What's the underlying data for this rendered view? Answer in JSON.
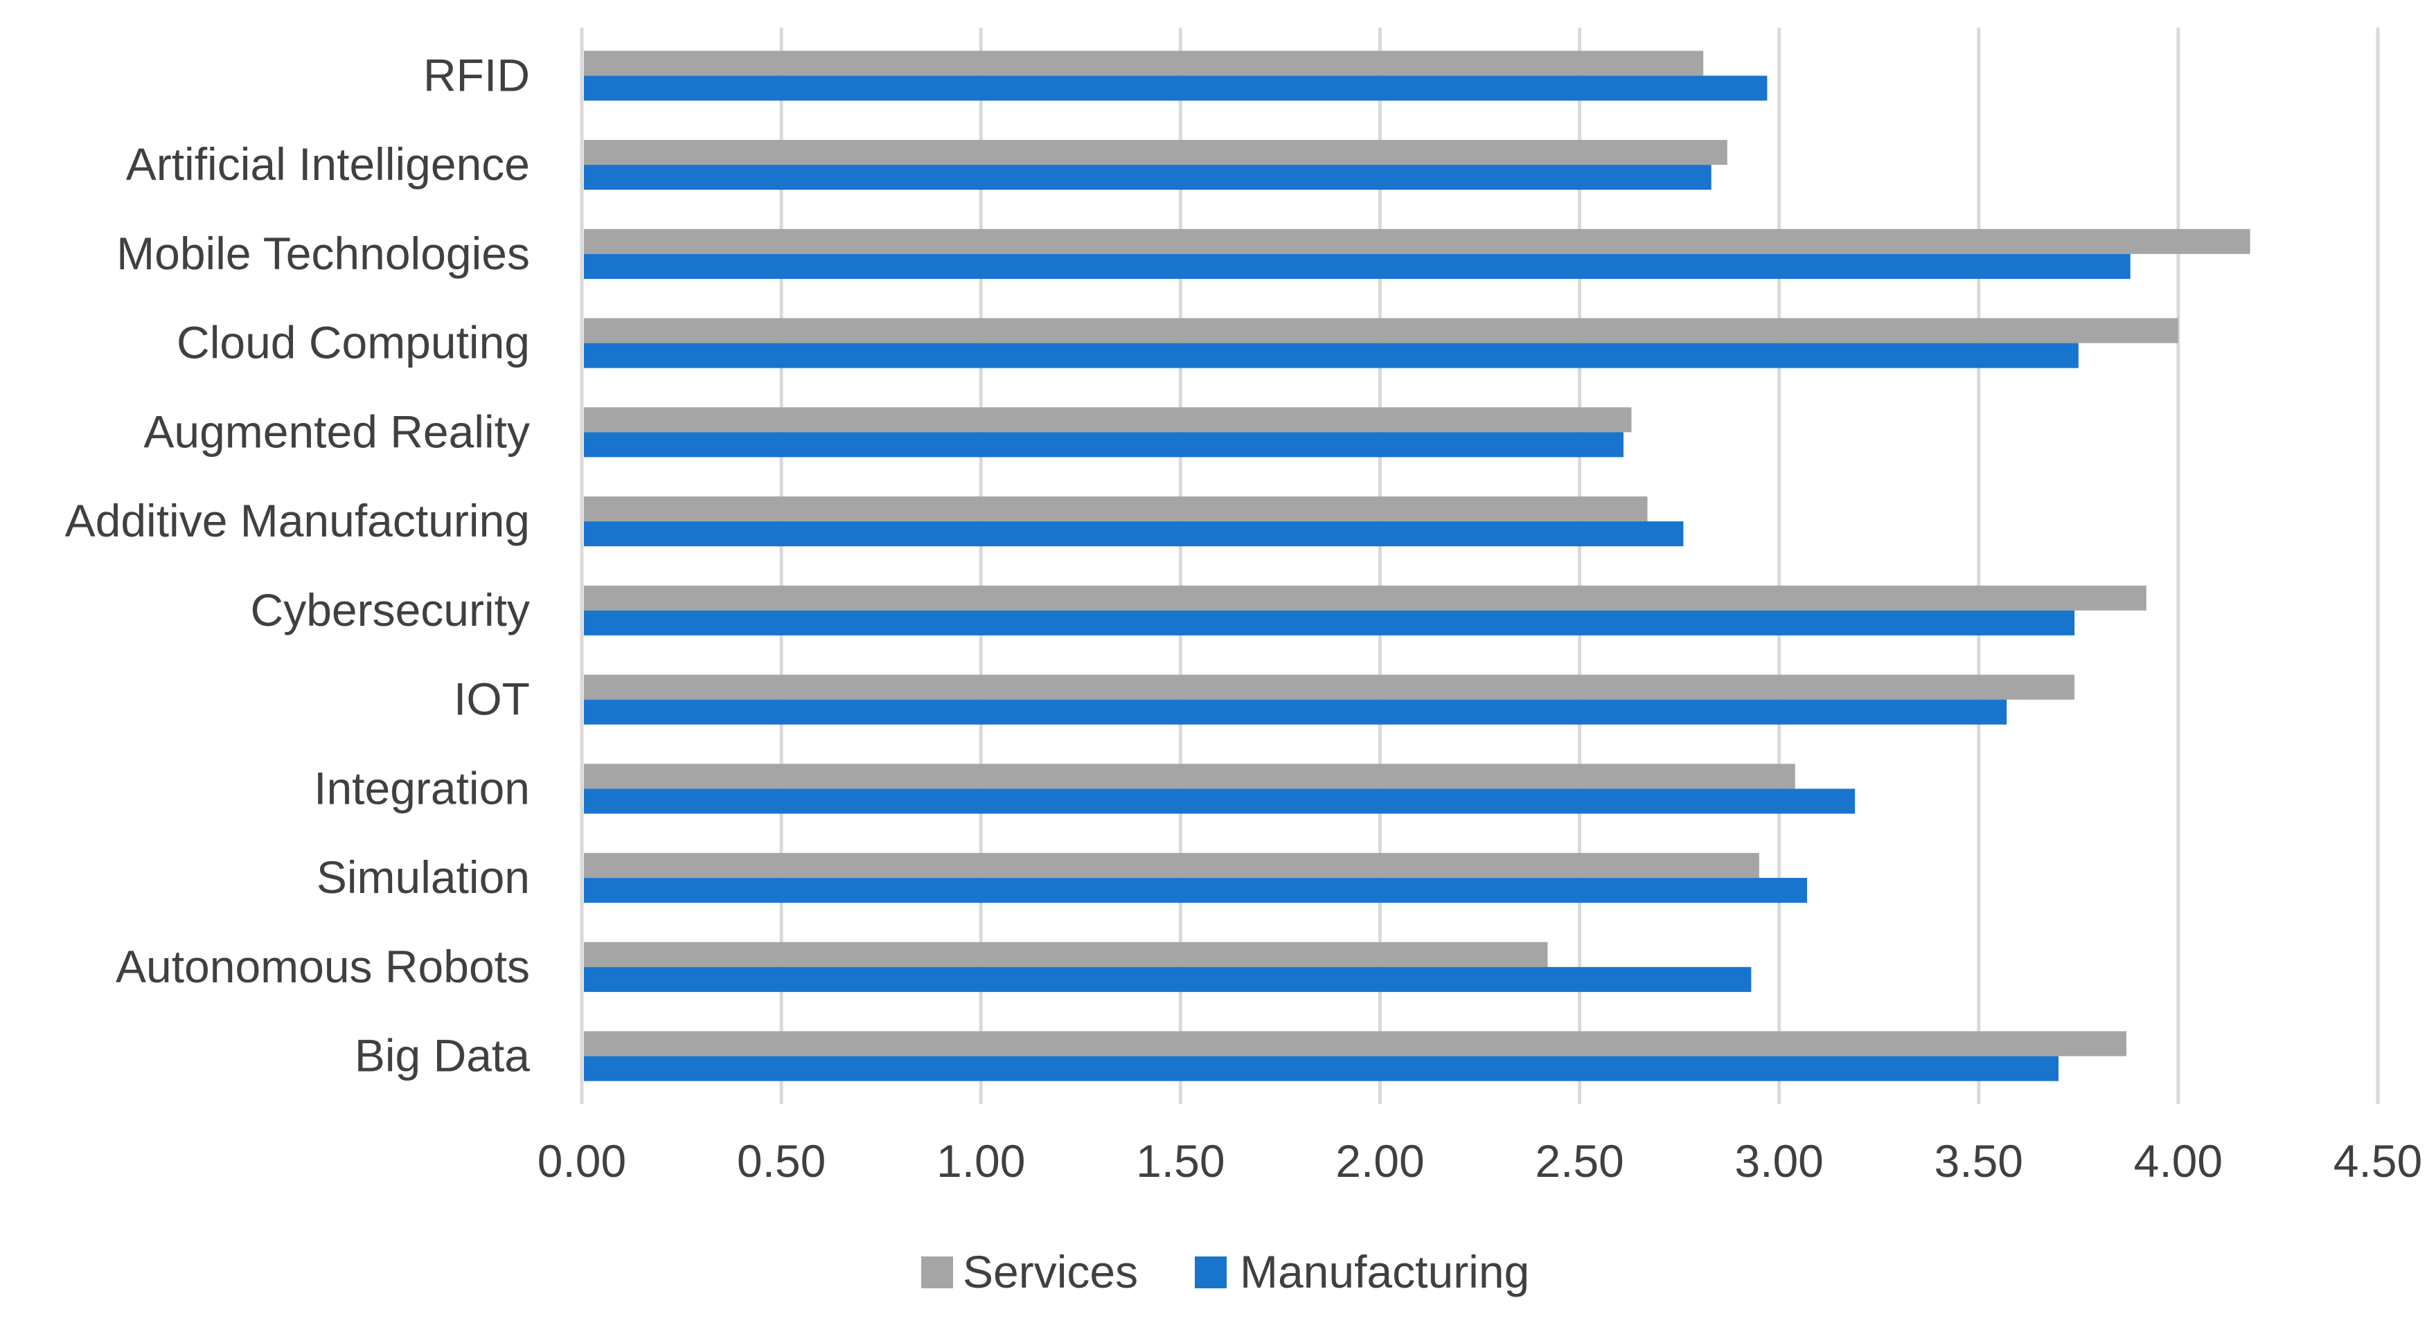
{
  "chart_data": {
    "type": "bar",
    "orientation": "horizontal",
    "title": "",
    "xlabel": "",
    "ylabel": "",
    "categories": [
      "RFID",
      "Artificial Intelligence",
      "Mobile Technologies",
      "Cloud Computing",
      "Augmented Reality",
      "Additive Manufacturing",
      "Cybersecurity",
      "IOT",
      "Integration",
      "Simulation",
      "Autonomous Robots",
      "Big Data"
    ],
    "series": [
      {
        "name": "Services",
        "color": "#a5a5a5",
        "values": [
          2.81,
          2.87,
          4.18,
          4.0,
          2.63,
          2.67,
          3.92,
          3.74,
          3.04,
          2.95,
          2.42,
          3.87
        ]
      },
      {
        "name": "Manufacturing",
        "color": "#1874cd",
        "values": [
          2.97,
          2.83,
          3.88,
          3.75,
          2.61,
          2.76,
          3.74,
          3.57,
          3.19,
          3.07,
          2.93,
          3.7
        ]
      }
    ],
    "xlim": [
      0,
      4.5
    ],
    "xticks": [
      "0.00",
      "0.50",
      "1.00",
      "1.50",
      "2.00",
      "2.50",
      "3.00",
      "3.50",
      "4.00",
      "4.50"
    ],
    "grid": true,
    "legend_position": "bottom"
  }
}
